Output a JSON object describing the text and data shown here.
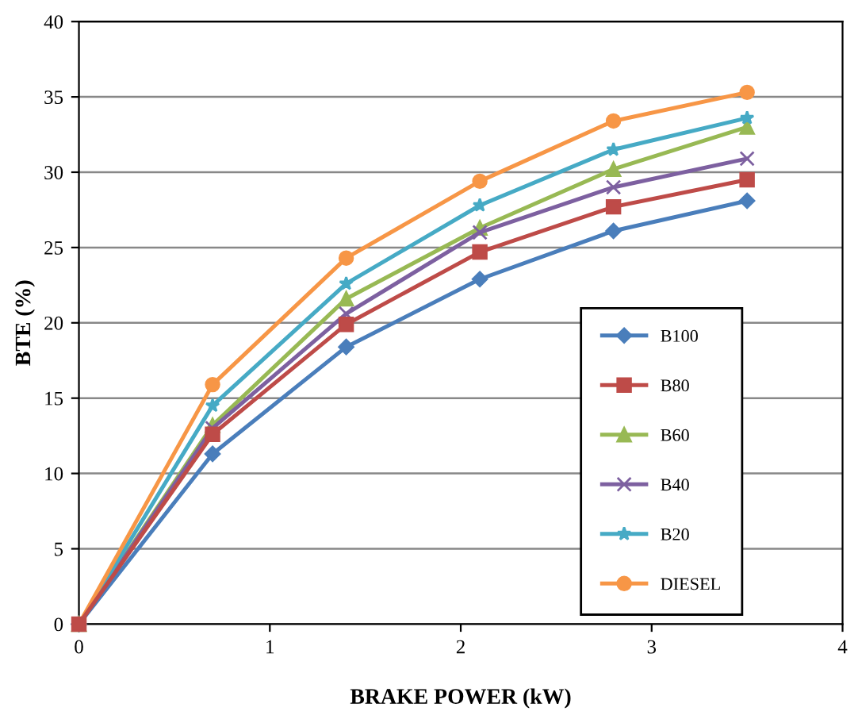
{
  "chart_data": {
    "type": "line",
    "xlabel": "BRAKE POWER (kW)",
    "ylabel": "BTE (%)",
    "x": [
      0,
      0.7,
      1.4,
      2.1,
      2.8,
      3.5
    ],
    "xlim": [
      0,
      4
    ],
    "xticks": [
      0,
      1,
      2,
      3,
      4
    ],
    "ylim": [
      0,
      40
    ],
    "yticks": [
      0,
      5,
      10,
      15,
      20,
      25,
      30,
      35,
      40
    ],
    "grid": "y",
    "legend": "right",
    "line_style": "solid",
    "series": [
      {
        "name": "B100",
        "color": "#4a7ebb",
        "marker": "diamond",
        "values": [
          0,
          11.3,
          18.4,
          22.9,
          26.1,
          28.1
        ]
      },
      {
        "name": "B80",
        "color": "#be4b48",
        "marker": "square",
        "values": [
          0,
          12.6,
          19.9,
          24.7,
          27.7,
          29.5
        ]
      },
      {
        "name": "B60",
        "color": "#98b954",
        "marker": "triangle",
        "values": [
          0,
          13.2,
          21.6,
          26.3,
          30.2,
          33.0
        ]
      },
      {
        "name": "B40",
        "color": "#7d60a0",
        "marker": "cross",
        "values": [
          0,
          13.0,
          20.6,
          26.0,
          29.0,
          30.9
        ]
      },
      {
        "name": "B20",
        "color": "#46aac5",
        "marker": "star",
        "values": [
          0,
          14.5,
          22.6,
          27.8,
          31.5,
          33.6
        ]
      },
      {
        "name": "DIESEL",
        "color": "#f79646",
        "marker": "circle",
        "values": [
          0,
          15.9,
          24.3,
          29.4,
          33.4,
          35.3
        ]
      }
    ]
  }
}
